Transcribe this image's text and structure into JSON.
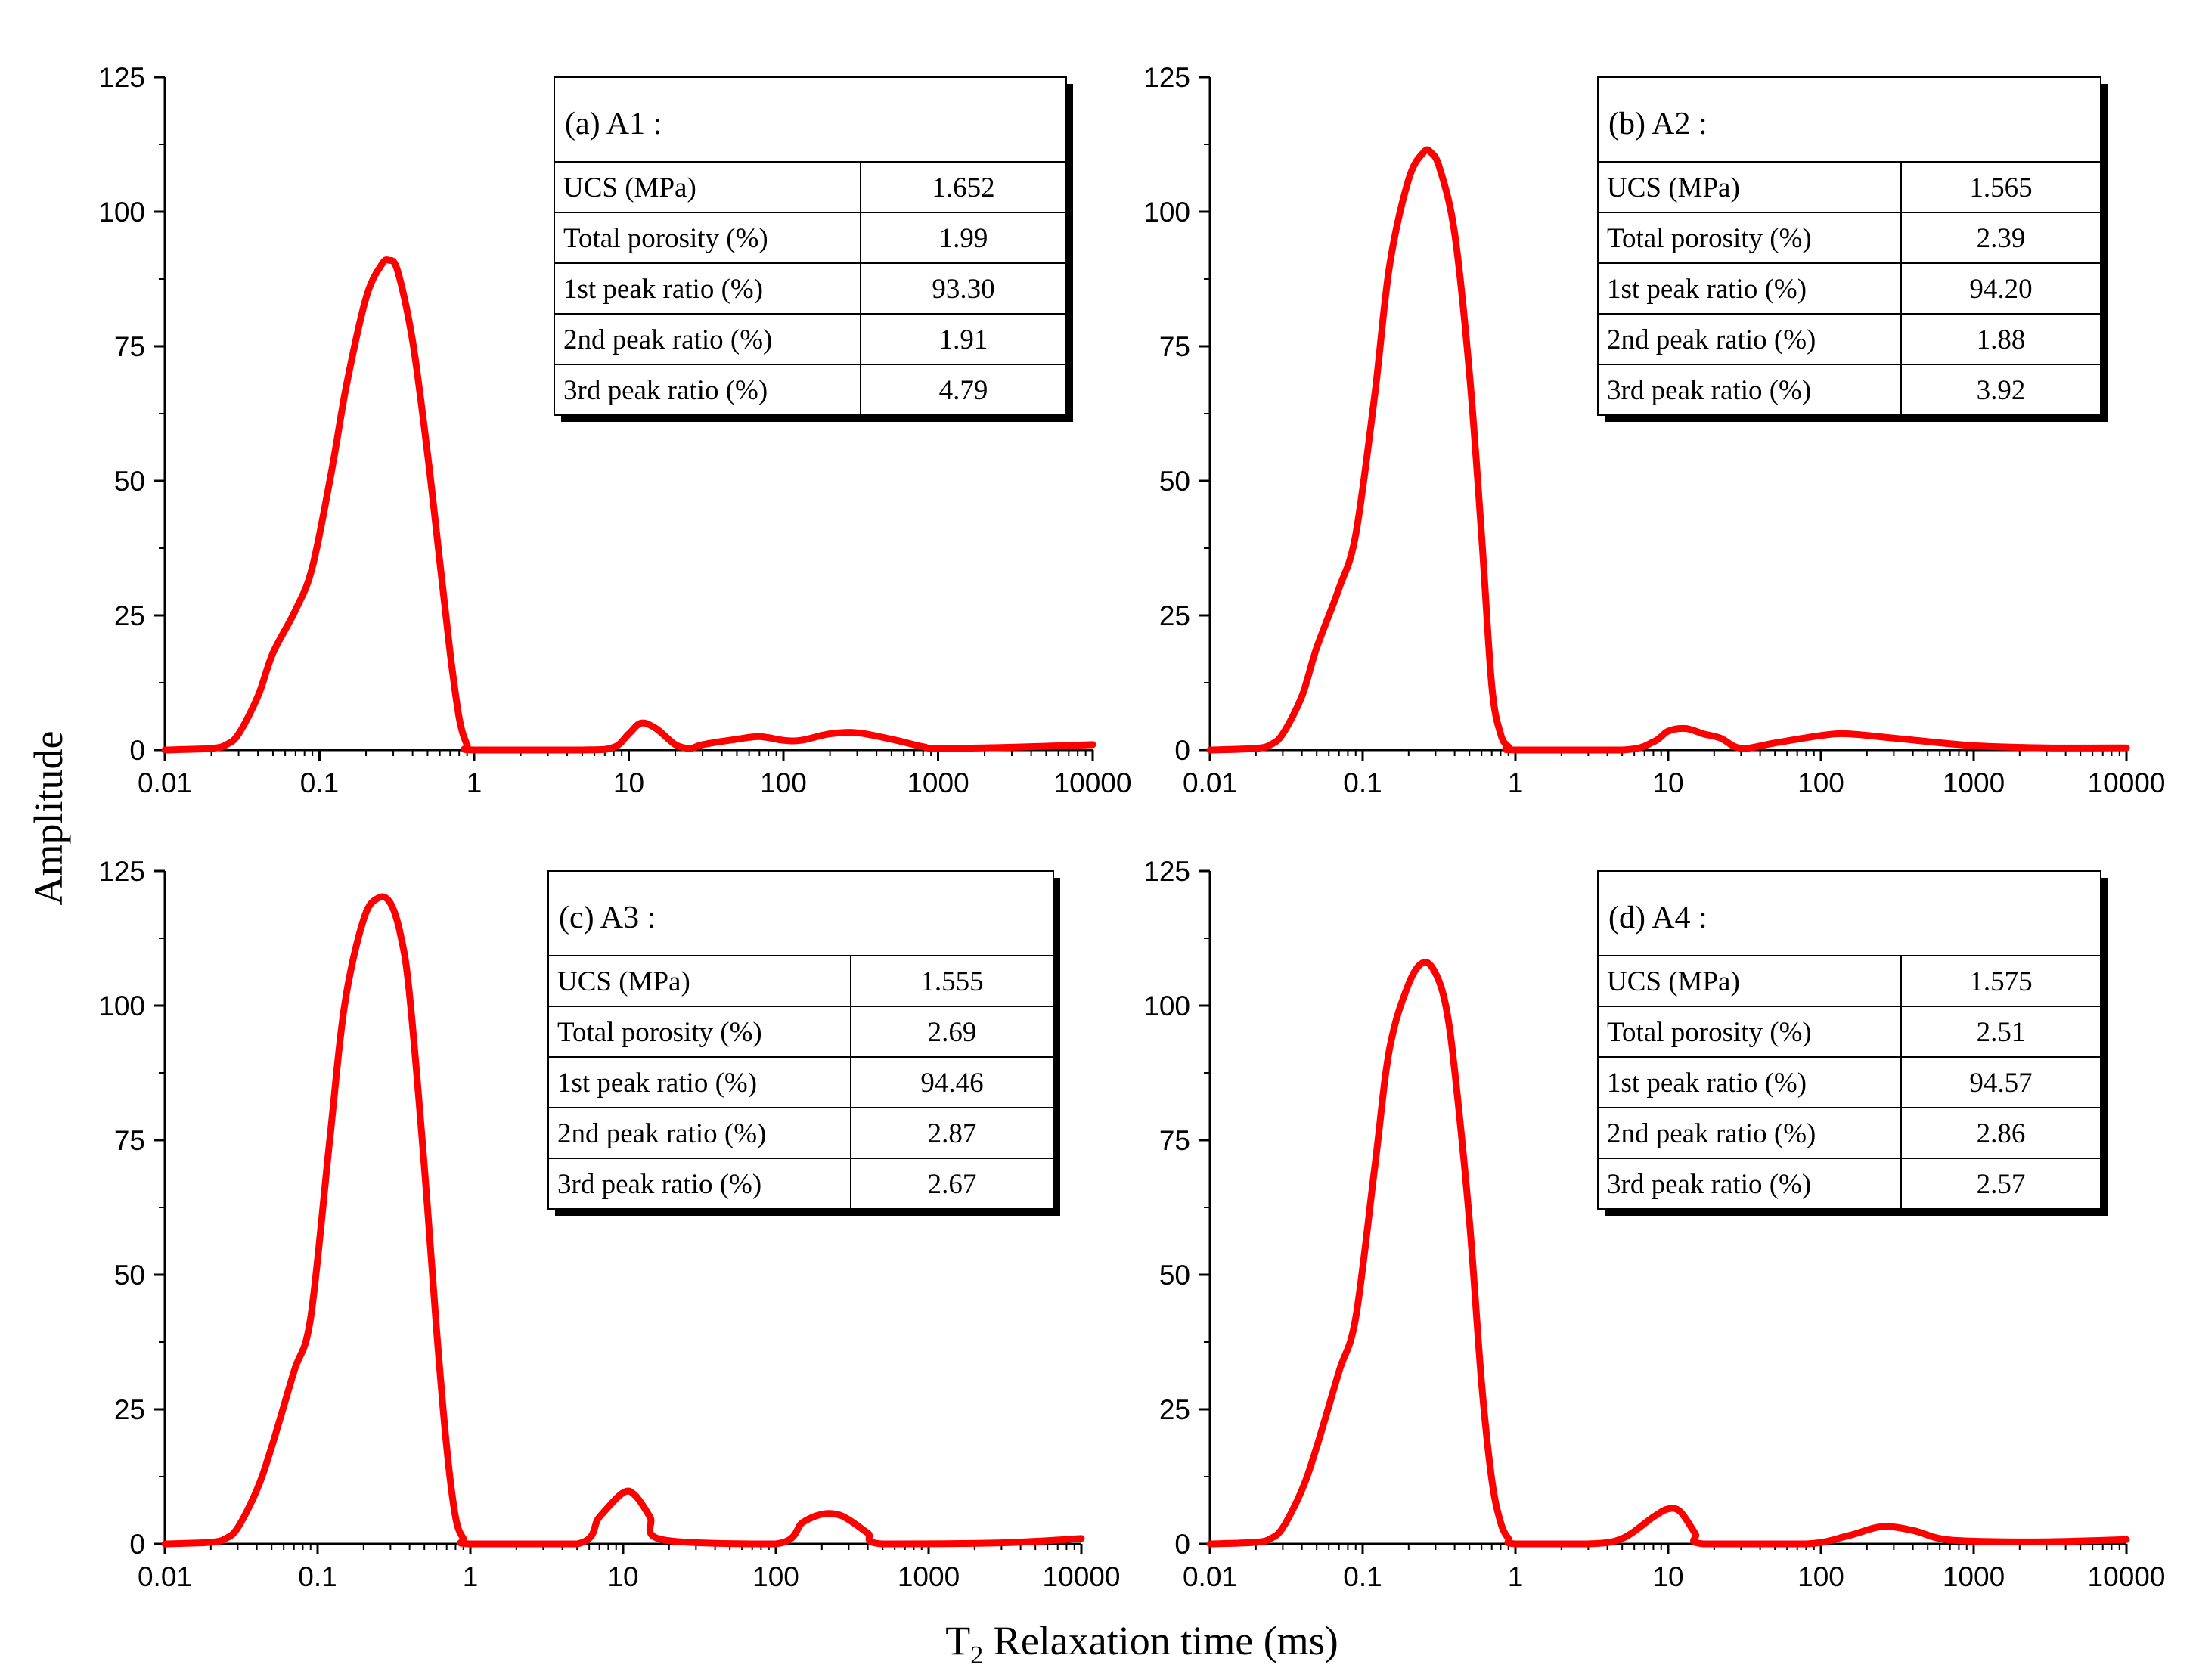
{
  "figure": {
    "ylabel": "Amplitude",
    "xlabel_prefix": "T",
    "xlabel_sub": "2",
    "xlabel_suffix": " Relaxation time (ms)",
    "line_color": "#ff0000"
  },
  "chart_data": [
    {
      "type": "line",
      "panel": "a",
      "table_title": "(a) A1 :",
      "table_rows": [
        {
          "label": "UCS (MPa)",
          "value": "1.652"
        },
        {
          "label": "Total porosity (%)",
          "value": "1.99"
        },
        {
          "label": "1st peak ratio (%)",
          "value": "93.30"
        },
        {
          "label": "2nd peak ratio (%)",
          "value": "1.91"
        },
        {
          "label": "3rd peak ratio (%)",
          "value": "4.79"
        }
      ],
      "x_scale": "log",
      "xlim": [
        0.01,
        10000
      ],
      "ylim": [
        0,
        125
      ],
      "x_ticks": [
        "0.01",
        "0.1",
        "1",
        "10",
        "100",
        "1000",
        "10000"
      ],
      "y_ticks": [
        "0",
        "25",
        "50",
        "75",
        "100",
        "125"
      ],
      "x": [
        0.01,
        0.02,
        0.025,
        0.03,
        0.04,
        0.05,
        0.07,
        0.09,
        0.12,
        0.15,
        0.2,
        0.25,
        0.28,
        0.32,
        0.4,
        0.5,
        0.6,
        0.7,
        0.8,
        0.9,
        1.0,
        5,
        8,
        10,
        12,
        15,
        20,
        25,
        30,
        50,
        70,
        100,
        130,
        200,
        300,
        500,
        800,
        1000,
        3000,
        10000
      ],
      "y": [
        0,
        0.3,
        1,
        3,
        10,
        18,
        26,
        34,
        52,
        68,
        84,
        90,
        91,
        89,
        76,
        55,
        35,
        18,
        6,
        1,
        0,
        0,
        0.5,
        3,
        5,
        4,
        1,
        0.3,
        1,
        2,
        2.5,
        1.8,
        1.8,
        3,
        3.2,
        2,
        0.6,
        0.3,
        0.5,
        1
      ]
    },
    {
      "type": "line",
      "panel": "b",
      "table_title": "(b) A2 :",
      "table_rows": [
        {
          "label": "UCS (MPa)",
          "value": "1.565"
        },
        {
          "label": "Total porosity (%)",
          "value": "2.39"
        },
        {
          "label": "1st peak ratio (%)",
          "value": "94.20"
        },
        {
          "label": "2nd peak ratio (%)",
          "value": "1.88"
        },
        {
          "label": "3rd peak ratio (%)",
          "value": "3.92"
        }
      ],
      "x_scale": "log",
      "xlim": [
        0.01,
        10000
      ],
      "ylim": [
        0,
        125
      ],
      "x_ticks": [
        "0.01",
        "0.1",
        "1",
        "10",
        "100",
        "1000",
        "10000"
      ],
      "y_ticks": [
        "0",
        "25",
        "50",
        "75",
        "100",
        "125"
      ],
      "x": [
        0.01,
        0.02,
        0.025,
        0.03,
        0.04,
        0.05,
        0.07,
        0.09,
        0.12,
        0.15,
        0.2,
        0.25,
        0.28,
        0.32,
        0.4,
        0.5,
        0.6,
        0.7,
        0.8,
        0.9,
        1.0,
        5,
        8,
        10,
        13,
        17,
        22,
        30,
        50,
        100,
        150,
        300,
        1000,
        3000,
        10000
      ],
      "y": [
        0,
        0.3,
        1,
        3,
        10,
        19,
        30,
        40,
        66,
        90,
        106,
        111,
        111,
        108,
        96,
        70,
        40,
        12,
        3,
        0.6,
        0,
        0,
        1.5,
        3.5,
        4,
        3,
        2.2,
        0.3,
        1.3,
        2.7,
        3,
        2.2,
        0.8,
        0.4,
        0.4
      ]
    },
    {
      "type": "line",
      "panel": "c",
      "table_title": "(c) A3 :",
      "table_rows": [
        {
          "label": "UCS (MPa)",
          "value": "1.555"
        },
        {
          "label": "Total porosity (%)",
          "value": "2.69"
        },
        {
          "label": "1st peak ratio (%)",
          "value": "94.46"
        },
        {
          "label": "2nd peak ratio (%)",
          "value": "2.87"
        },
        {
          "label": "3rd peak ratio (%)",
          "value": "2.67"
        }
      ],
      "x_scale": "log",
      "xlim": [
        0.01,
        10000
      ],
      "ylim": [
        0,
        125
      ],
      "x_ticks": [
        "0.01",
        "0.1",
        "1",
        "10",
        "100",
        "1000",
        "10000"
      ],
      "y_ticks": [
        "0",
        "25",
        "50",
        "75",
        "100",
        "125"
      ],
      "x": [
        0.01,
        0.02,
        0.025,
        0.03,
        0.04,
        0.05,
        0.07,
        0.09,
        0.12,
        0.15,
        0.2,
        0.25,
        0.3,
        0.35,
        0.4,
        0.5,
        0.6,
        0.7,
        0.8,
        0.9,
        1.0,
        5,
        7,
        10,
        12,
        15,
        18,
        100,
        150,
        200,
        250,
        300,
        400,
        500,
        3000,
        10000
      ],
      "y": [
        0,
        0.3,
        1,
        3,
        10,
        18,
        32,
        42,
        75,
        100,
        116,
        120,
        119,
        113,
        102,
        70,
        40,
        18,
        5,
        1,
        0,
        0,
        5,
        9.5,
        9,
        5,
        0.8,
        0,
        4,
        5.5,
        5.5,
        4.5,
        2,
        0,
        0.2,
        1
      ]
    },
    {
      "type": "line",
      "panel": "d",
      "table_title": "(d) A4 :",
      "table_rows": [
        {
          "label": "UCS (MPa)",
          "value": "1.575"
        },
        {
          "label": "Total porosity (%)",
          "value": "2.51"
        },
        {
          "label": "1st peak ratio (%)",
          "value": "94.57"
        },
        {
          "label": "2nd peak ratio (%)",
          "value": "2.86"
        },
        {
          "label": "3rd peak ratio (%)",
          "value": "2.57"
        }
      ],
      "x_scale": "log",
      "xlim": [
        0.01,
        10000
      ],
      "ylim": [
        0,
        125
      ],
      "x_ticks": [
        "0.01",
        "0.1",
        "1",
        "10",
        "100",
        "1000",
        "10000"
      ],
      "y_ticks": [
        "0",
        "25",
        "50",
        "75",
        "100",
        "125"
      ],
      "x": [
        0.01,
        0.02,
        0.025,
        0.03,
        0.04,
        0.05,
        0.07,
        0.09,
        0.12,
        0.15,
        0.2,
        0.25,
        0.3,
        0.35,
        0.4,
        0.5,
        0.6,
        0.7,
        0.8,
        0.9,
        1.0,
        3,
        5,
        8,
        10,
        12,
        15,
        17,
        80,
        150,
        250,
        400,
        600,
        1000,
        3000,
        10000
      ],
      "y": [
        0,
        0.3,
        1,
        3,
        10,
        18,
        32,
        42,
        70,
        92,
        104,
        108,
        106,
        100,
        88,
        60,
        30,
        12,
        4,
        1,
        0,
        0,
        1,
        5,
        6.5,
        6,
        2,
        0,
        0,
        1.5,
        3.2,
        2.5,
        1,
        0.5,
        0.4,
        0.8
      ]
    }
  ]
}
